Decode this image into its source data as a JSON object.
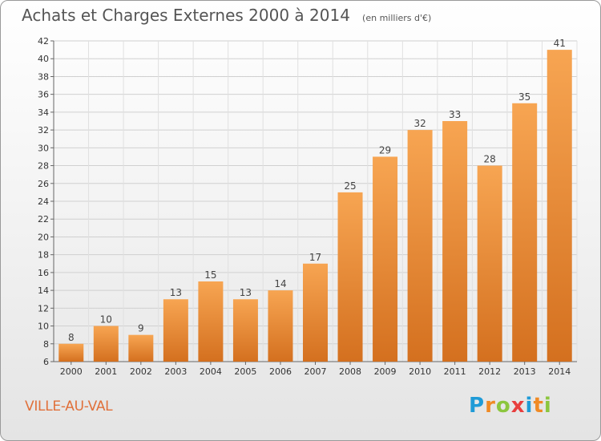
{
  "header": {
    "title": "Achats et Charges Externes 2000 à 2014",
    "subtitle": "(en milliers d'€)"
  },
  "footer": {
    "commune": "VILLE-AU-VAL",
    "logo_text": "Proxiti",
    "logo_letters": [
      {
        "char": "P",
        "color": "#1f9bd7"
      },
      {
        "char": "r",
        "color": "#f08a24"
      },
      {
        "char": "o",
        "color": "#8cc63e"
      },
      {
        "char": "x",
        "color": "#e83e3e"
      },
      {
        "char": "i",
        "color": "#1f9bd7"
      },
      {
        "char": "t",
        "color": "#f08a24"
      },
      {
        "char": "i",
        "color": "#8cc63e"
      }
    ]
  },
  "chart_data": {
    "type": "bar",
    "categories": [
      "2000",
      "2001",
      "2002",
      "2003",
      "2004",
      "2005",
      "2006",
      "2007",
      "2008",
      "2009",
      "2010",
      "2011",
      "2012",
      "2013",
      "2014"
    ],
    "values": [
      8,
      10,
      9,
      13,
      15,
      13,
      14,
      17,
      25,
      29,
      32,
      33,
      28,
      35,
      41
    ],
    "ylim": [
      6,
      42
    ],
    "yticks": [
      6,
      8,
      10,
      12,
      14,
      16,
      18,
      20,
      22,
      24,
      26,
      28,
      30,
      32,
      34,
      36,
      38,
      40,
      42
    ],
    "grid": true,
    "bar_color": "#f08a24",
    "bar_color_dark": "#d2691e",
    "title": "Achats et Charges Externes 2000 à 2014",
    "xlabel": "",
    "ylabel": ""
  }
}
